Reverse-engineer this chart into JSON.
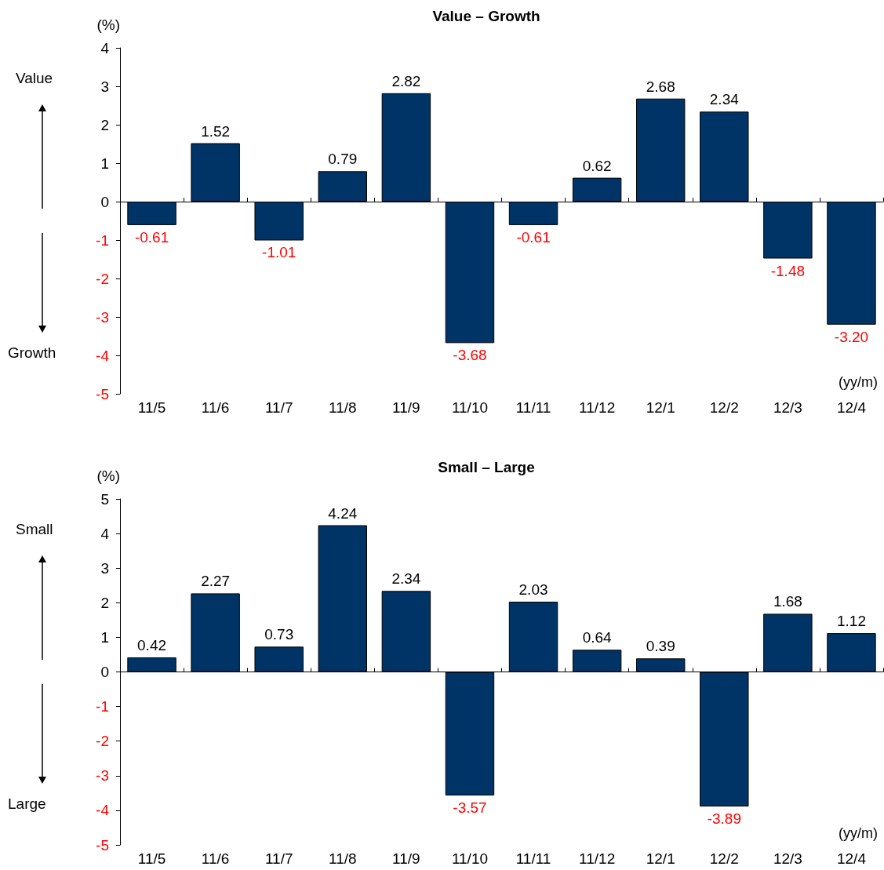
{
  "chart_data": [
    {
      "type": "bar",
      "title": "Value – Growth",
      "ylabel": "(%)",
      "xlabel": "(yy/m)",
      "annotations": [
        "Value",
        "Growth"
      ],
      "categories": [
        "11/5",
        "11/6",
        "11/7",
        "11/8",
        "11/9",
        "11/10",
        "11/11",
        "11/12",
        "12/1",
        "12/2",
        "12/3",
        "12/4"
      ],
      "series": [
        {
          "color": "#003366",
          "values": [
            -0.61,
            1.52,
            -1.01,
            0.79,
            2.82,
            -3.68,
            -0.61,
            0.62,
            2.68,
            2.34,
            -1.48,
            -3.2
          ],
          "value_labels": [
            "-0.61",
            "1.52",
            "-1.01",
            "0.79",
            "2.82",
            "-3.68",
            "-0.61",
            "0.62",
            "2.68",
            "2.34",
            "-1.48",
            "-3.20"
          ]
        }
      ],
      "ylim": [
        -5,
        4
      ],
      "yticks": [
        -5,
        -4,
        -3,
        -2,
        -1,
        0,
        1,
        2,
        3,
        4
      ]
    },
    {
      "type": "bar",
      "title": "Small – Large",
      "ylabel": "(%)",
      "xlabel": "(yy/m)",
      "annotations": [
        "Small",
        "Large"
      ],
      "categories": [
        "11/5",
        "11/6",
        "11/7",
        "11/8",
        "11/9",
        "11/10",
        "11/11",
        "11/12",
        "12/1",
        "12/2",
        "12/3",
        "12/4"
      ],
      "series": [
        {
          "color": "#003366",
          "values": [
            0.42,
            2.27,
            0.73,
            4.24,
            2.34,
            -3.57,
            2.03,
            0.64,
            0.39,
            -3.89,
            1.68,
            1.12
          ],
          "value_labels": [
            "0.42",
            "2.27",
            "0.73",
            "4.24",
            "2.34",
            "-3.57",
            "2.03",
            "0.64",
            "0.39",
            "-3.89",
            "1.68",
            "1.12"
          ]
        }
      ],
      "ylim": [
        -5,
        5
      ],
      "yticks": [
        -5,
        -4,
        -3,
        -2,
        -1,
        0,
        1,
        2,
        3,
        4,
        5
      ]
    }
  ]
}
